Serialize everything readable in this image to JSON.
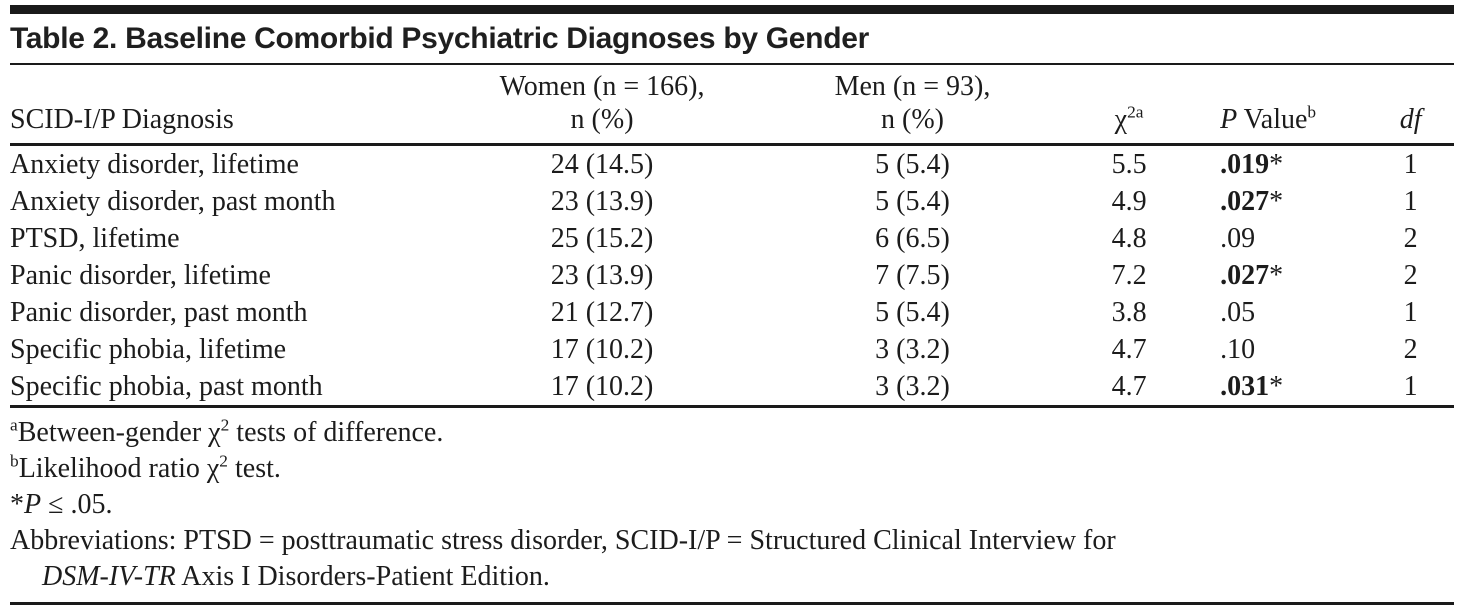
{
  "table": {
    "title": "Table 2. Baseline Comorbid Psychiatric Diagnoses by Gender",
    "header": {
      "diagnosis": "SCID-I/P Diagnosis",
      "women_line1": "Women (n = 166),",
      "women_line2": "n (%)",
      "men_line1": "Men (n = 93),",
      "men_line2": "n (%)",
      "chi2_base": "χ",
      "chi2_sup": "2a",
      "p_italic": "P",
      "p_rest": " Value",
      "p_sup": "b",
      "df": "df"
    },
    "rows": [
      {
        "diagnosis": "Anxiety disorder, lifetime",
        "women": "24 (14.5)",
        "men": "5 (5.4)",
        "chi2": "5.5",
        "p": ".019",
        "star": "*",
        "significant": true,
        "df": "1"
      },
      {
        "diagnosis": "Anxiety disorder, past month",
        "women": "23 (13.9)",
        "men": "5 (5.4)",
        "chi2": "4.9",
        "p": ".027",
        "star": "*",
        "significant": true,
        "df": "1"
      },
      {
        "diagnosis": "PTSD, lifetime",
        "women": "25 (15.2)",
        "men": "6 (6.5)",
        "chi2": "4.8",
        "p": ".09",
        "star": "",
        "significant": false,
        "df": "2"
      },
      {
        "diagnosis": "Panic disorder, lifetime",
        "women": "23 (13.9)",
        "men": "7 (7.5)",
        "chi2": "7.2",
        "p": ".027",
        "star": "*",
        "significant": true,
        "df": "2"
      },
      {
        "diagnosis": "Panic disorder, past month",
        "women": "21 (12.7)",
        "men": "5 (5.4)",
        "chi2": "3.8",
        "p": ".05",
        "star": "",
        "significant": false,
        "df": "1"
      },
      {
        "diagnosis": "Specific phobia, lifetime",
        "women": "17 (10.2)",
        "men": "3 (3.2)",
        "chi2": "4.7",
        "p": ".10",
        "star": "",
        "significant": false,
        "df": "2"
      },
      {
        "diagnosis": "Specific phobia, past month",
        "women": "17 (10.2)",
        "men": "3 (3.2)",
        "chi2": "4.7",
        "p": ".031",
        "star": "*",
        "significant": true,
        "df": "1"
      }
    ],
    "footnotes": {
      "a_marker": "a",
      "a_pre": "Between-gender χ",
      "a_chi_sup": "2",
      "a_post": " tests of difference.",
      "b_marker": "b",
      "b_pre": "Likelihood ratio χ",
      "b_chi_sup": "2",
      "b_post": " test.",
      "sig_star": "*",
      "sig_p": "P",
      "sig_post": " ≤ .05.",
      "abbrev_line1": "Abbreviations: PTSD = posttraumatic stress disorder, SCID-I/P = Structured Clinical Interview for",
      "abbrev_italic": "DSM-IV-TR",
      "abbrev_line2_rest": " Axis I Disorders-Patient Edition."
    }
  }
}
